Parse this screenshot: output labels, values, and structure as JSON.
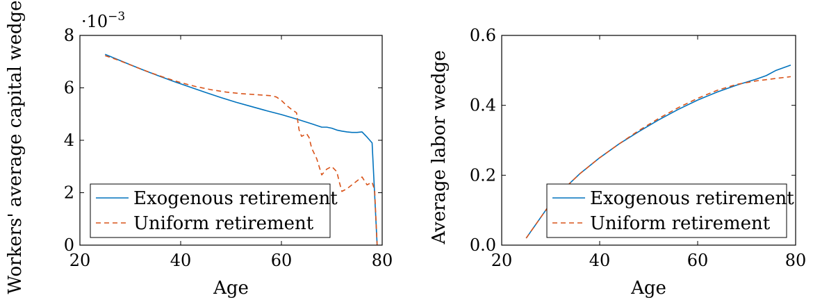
{
  "chart_data": [
    {
      "type": "line",
      "title": "",
      "xlabel": "Age",
      "ylabel": "Workers' average capital wedge",
      "y_multiplier": "·10",
      "y_multiplier_exponent": "−3",
      "xlim": [
        20,
        80
      ],
      "ylim": [
        0,
        8
      ],
      "xticks": [
        20,
        40,
        60,
        80
      ],
      "yticks": [
        0,
        2,
        4,
        6,
        8
      ],
      "grid": false,
      "legend_position": "lower-left",
      "series": [
        {
          "name": "Exogenous retirement",
          "color": "#0072BD",
          "dash": "solid",
          "x": [
            25,
            27,
            30,
            33,
            36,
            39,
            42,
            45,
            48,
            51,
            54,
            57,
            60,
            63,
            66,
            68,
            69,
            70,
            71,
            72,
            73,
            74,
            75,
            76,
            77,
            78,
            79
          ],
          "y": [
            7.28,
            7.12,
            6.88,
            6.65,
            6.43,
            6.22,
            6.02,
            5.82,
            5.63,
            5.45,
            5.29,
            5.13,
            4.98,
            4.81,
            4.63,
            4.5,
            4.5,
            4.46,
            4.39,
            4.35,
            4.32,
            4.3,
            4.3,
            4.32,
            4.12,
            3.9,
            0.0
          ]
        },
        {
          "name": "Uniform retirement",
          "color": "#D95319",
          "dash": "dashed",
          "x": [
            25,
            28,
            31,
            34,
            37,
            40,
            43,
            46,
            49,
            52,
            55,
            58,
            59,
            60,
            61,
            62,
            63,
            63.5,
            64,
            65,
            65.5,
            66,
            67,
            68,
            69,
            70,
            71,
            71.5,
            72,
            73,
            74,
            75,
            76,
            77,
            78,
            78.5,
            79
          ],
          "y": [
            7.23,
            7.03,
            6.8,
            6.58,
            6.38,
            6.2,
            6.05,
            5.93,
            5.84,
            5.78,
            5.74,
            5.7,
            5.65,
            5.52,
            5.33,
            5.18,
            5.05,
            4.4,
            4.15,
            4.25,
            4.1,
            3.7,
            3.3,
            2.68,
            2.9,
            3.0,
            2.8,
            2.4,
            2.05,
            2.15,
            2.3,
            2.45,
            2.6,
            2.3,
            2.4,
            2.1,
            0.0
          ]
        }
      ]
    },
    {
      "type": "line",
      "title": "",
      "xlabel": "Age",
      "ylabel": "Average labor wedge",
      "xlim": [
        20,
        80
      ],
      "ylim": [
        0,
        0.6
      ],
      "xticks": [
        20,
        40,
        60,
        80
      ],
      "yticks": [
        0,
        0.2,
        0.4,
        0.6
      ],
      "grid": false,
      "legend_position": "lower-right",
      "series": [
        {
          "name": "Exogenous retirement",
          "color": "#0072BD",
          "dash": "solid",
          "x": [
            25,
            27,
            30,
            33,
            36,
            40,
            44,
            48,
            52,
            56,
            60,
            64,
            68,
            72,
            74,
            76,
            79
          ],
          "y": [
            0.02,
            0.06,
            0.12,
            0.165,
            0.205,
            0.25,
            0.29,
            0.325,
            0.358,
            0.388,
            0.415,
            0.438,
            0.458,
            0.475,
            0.485,
            0.5,
            0.515
          ]
        },
        {
          "name": "Uniform retirement",
          "color": "#D95319",
          "dash": "dashed",
          "x": [
            25,
            27,
            30,
            33,
            36,
            40,
            44,
            48,
            52,
            56,
            60,
            64,
            68,
            72,
            76,
            79
          ],
          "y": [
            0.02,
            0.06,
            0.12,
            0.165,
            0.205,
            0.25,
            0.29,
            0.328,
            0.362,
            0.393,
            0.42,
            0.443,
            0.46,
            0.47,
            0.477,
            0.482
          ]
        }
      ]
    }
  ]
}
